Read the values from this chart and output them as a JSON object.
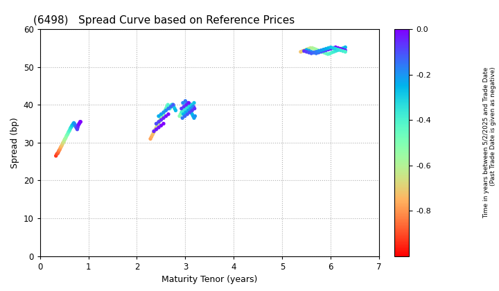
{
  "title": "(6498)   Spread Curve based on Reference Prices",
  "xlabel": "Maturity Tenor (years)",
  "ylabel": "Spread (bp)",
  "colorbar_label_line1": "Time in years between 5/2/2025 and Trade Date",
  "colorbar_label_line2": "(Past Trade Date is given as negative)",
  "xlim": [
    0,
    7
  ],
  "ylim": [
    0,
    60
  ],
  "xticks": [
    0,
    1,
    2,
    3,
    4,
    5,
    6,
    7
  ],
  "yticks": [
    0,
    10,
    20,
    30,
    40,
    50,
    60
  ],
  "cmap": "rainbow_r",
  "vmin": -1.0,
  "vmax": 0.0,
  "background_color": "#ffffff",
  "grid_color": "#b0b0b0",
  "point_size": 15,
  "cluster1_x": [
    0.33,
    0.35,
    0.37,
    0.38,
    0.39,
    0.4,
    0.41,
    0.42,
    0.43,
    0.44,
    0.45,
    0.46,
    0.47,
    0.48,
    0.49,
    0.5,
    0.51,
    0.52,
    0.53,
    0.54,
    0.55,
    0.56,
    0.57,
    0.58,
    0.59,
    0.6,
    0.61,
    0.62,
    0.63,
    0.64,
    0.65,
    0.66,
    0.67,
    0.68,
    0.69,
    0.7,
    0.71,
    0.72,
    0.73,
    0.74,
    0.75,
    0.76,
    0.77,
    0.78,
    0.79,
    0.8,
    0.81,
    0.82,
    0.83,
    0.84
  ],
  "cluster1_y": [
    26.5,
    27.0,
    27.2,
    27.5,
    27.8,
    28.0,
    28.2,
    28.5,
    28.8,
    29.0,
    29.2,
    29.5,
    29.8,
    30.0,
    30.2,
    30.5,
    30.8,
    31.0,
    31.2,
    31.5,
    31.8,
    32.0,
    32.2,
    32.5,
    32.8,
    33.0,
    33.2,
    33.5,
    33.8,
    34.0,
    34.2,
    34.5,
    34.5,
    34.8,
    35.0,
    35.2,
    35.0,
    34.8,
    34.5,
    34.2,
    34.0,
    33.8,
    33.5,
    34.0,
    34.5,
    34.8,
    35.0,
    35.2,
    35.5,
    35.5
  ],
  "cluster1_c": [
    -0.93,
    -0.91,
    -0.89,
    -0.87,
    -0.85,
    -0.83,
    -0.81,
    -0.79,
    -0.77,
    -0.75,
    -0.73,
    -0.71,
    -0.69,
    -0.67,
    -0.65,
    -0.63,
    -0.61,
    -0.59,
    -0.57,
    -0.55,
    -0.53,
    -0.51,
    -0.49,
    -0.47,
    -0.45,
    -0.43,
    -0.41,
    -0.39,
    -0.37,
    -0.35,
    -0.33,
    -0.31,
    -0.29,
    -0.27,
    -0.25,
    -0.23,
    -0.21,
    -0.19,
    -0.17,
    -0.15,
    -0.13,
    -0.11,
    -0.09,
    -0.07,
    -0.05,
    -0.03,
    -0.02,
    -0.01,
    -0.005,
    0.0
  ],
  "cluster2_x": [
    2.28,
    2.3,
    2.32,
    2.34,
    2.36,
    2.38,
    2.4,
    2.42,
    2.44,
    2.46,
    2.48,
    2.5,
    2.52,
    2.54,
    2.56,
    2.58,
    2.6,
    2.62,
    2.64,
    2.66,
    2.68,
    2.7,
    2.72,
    2.74,
    2.76,
    2.78,
    2.8,
    2.45,
    2.5,
    2.55,
    2.6,
    2.65,
    2.7,
    2.75,
    2.4,
    2.45,
    2.5,
    2.55,
    2.6,
    2.65,
    2.35,
    2.4,
    2.45,
    2.5,
    2.55
  ],
  "cluster2_y": [
    31.0,
    31.5,
    32.0,
    32.5,
    33.0,
    33.5,
    34.0,
    34.5,
    35.0,
    35.5,
    36.0,
    36.5,
    37.0,
    37.5,
    38.0,
    38.5,
    39.0,
    39.5,
    40.0,
    39.5,
    39.0,
    39.5,
    40.0,
    40.0,
    39.5,
    39.0,
    38.5,
    37.0,
    37.5,
    38.0,
    38.5,
    39.0,
    39.5,
    40.0,
    35.0,
    35.5,
    36.0,
    36.5,
    37.0,
    37.5,
    33.0,
    33.5,
    34.0,
    34.5,
    35.0
  ],
  "cluster2_c": [
    -0.78,
    -0.76,
    -0.74,
    -0.72,
    -0.7,
    -0.68,
    -0.66,
    -0.64,
    -0.62,
    -0.6,
    -0.58,
    -0.56,
    -0.54,
    -0.52,
    -0.5,
    -0.48,
    -0.46,
    -0.44,
    -0.42,
    -0.4,
    -0.38,
    -0.36,
    -0.34,
    -0.32,
    -0.3,
    -0.28,
    -0.26,
    -0.24,
    -0.22,
    -0.2,
    -0.18,
    -0.16,
    -0.14,
    -0.12,
    -0.1,
    -0.08,
    -0.06,
    -0.04,
    -0.02,
    -0.01,
    -0.05,
    -0.03,
    -0.02,
    -0.01,
    0.0
  ],
  "cluster3_x": [
    2.88,
    2.9,
    2.92,
    2.94,
    2.96,
    2.98,
    3.0,
    3.02,
    3.04,
    3.06,
    3.08,
    3.1,
    3.12,
    3.14,
    3.16,
    3.18,
    3.2,
    2.95,
    3.0,
    3.05,
    3.1,
    3.15,
    2.92,
    2.97,
    3.02,
    3.07,
    3.12,
    3.17,
    2.93,
    2.98,
    3.03,
    3.08,
    3.13,
    3.18,
    2.96,
    3.01,
    3.06,
    3.11,
    3.16,
    2.94,
    2.99,
    3.04,
    3.09,
    3.14,
    3.19
  ],
  "cluster3_y": [
    37.0,
    37.5,
    38.0,
    38.5,
    39.0,
    39.5,
    40.0,
    40.5,
    40.0,
    39.5,
    39.0,
    38.5,
    38.0,
    37.5,
    37.0,
    36.5,
    37.0,
    40.5,
    41.0,
    40.5,
    40.0,
    39.5,
    39.0,
    39.5,
    40.0,
    40.5,
    40.0,
    39.5,
    38.0,
    38.5,
    39.0,
    39.5,
    40.0,
    40.5,
    37.5,
    38.0,
    38.5,
    39.0,
    39.5,
    36.5,
    37.0,
    37.5,
    38.0,
    38.5,
    39.0
  ],
  "cluster3_c": [
    -0.52,
    -0.5,
    -0.48,
    -0.46,
    -0.44,
    -0.42,
    -0.4,
    -0.38,
    -0.36,
    -0.34,
    -0.32,
    -0.3,
    -0.28,
    -0.26,
    -0.24,
    -0.22,
    -0.2,
    -0.18,
    -0.16,
    -0.14,
    -0.12,
    -0.1,
    -0.08,
    -0.06,
    -0.04,
    -0.02,
    -0.01,
    -0.005,
    -0.38,
    -0.36,
    -0.34,
    -0.32,
    -0.3,
    -0.28,
    -0.26,
    -0.24,
    -0.22,
    -0.2,
    -0.18,
    -0.16,
    -0.14,
    -0.12,
    -0.1,
    -0.08,
    -0.06
  ],
  "cluster4_x": [
    5.38,
    5.42,
    5.46,
    5.5,
    5.54,
    5.58,
    5.62,
    5.66,
    5.7,
    5.74,
    5.78,
    5.82,
    5.86,
    5.9,
    5.94,
    5.98,
    6.02,
    6.06,
    6.1,
    6.14,
    6.18,
    6.22,
    6.26,
    6.3,
    5.5,
    5.55,
    5.6,
    5.65,
    5.7,
    5.75,
    5.8,
    5.85,
    5.9,
    5.95,
    6.0,
    6.05,
    6.1,
    6.15,
    6.2,
    6.25,
    6.3,
    5.45,
    5.5,
    5.55,
    5.6,
    5.65,
    5.7,
    5.75,
    5.8,
    5.85,
    5.9,
    5.95,
    6.0,
    6.05,
    6.1,
    6.15,
    6.2,
    6.25,
    6.3
  ],
  "cluster4_y": [
    54.0,
    54.2,
    54.4,
    54.6,
    54.8,
    55.0,
    55.0,
    54.8,
    54.6,
    54.4,
    54.2,
    54.0,
    53.8,
    53.6,
    53.4,
    53.5,
    53.8,
    54.0,
    54.2,
    54.4,
    54.6,
    54.8,
    55.0,
    55.2,
    54.5,
    54.3,
    54.0,
    53.8,
    53.6,
    53.8,
    54.0,
    54.2,
    54.4,
    54.6,
    54.8,
    55.0,
    55.2,
    55.0,
    54.8,
    54.6,
    54.4,
    54.2,
    54.0,
    53.8,
    53.6,
    53.8,
    54.0,
    54.2,
    54.4,
    54.6,
    54.8,
    55.0,
    55.2,
    55.0,
    54.8,
    54.6,
    54.4,
    54.2,
    54.0
  ],
  "cluster4_c": [
    -0.72,
    -0.7,
    -0.68,
    -0.66,
    -0.64,
    -0.62,
    -0.6,
    -0.58,
    -0.56,
    -0.54,
    -0.52,
    -0.5,
    -0.48,
    -0.46,
    -0.44,
    -0.42,
    -0.4,
    -0.38,
    -0.36,
    -0.34,
    -0.32,
    -0.3,
    -0.28,
    -0.26,
    -0.24,
    -0.22,
    -0.2,
    -0.18,
    -0.16,
    -0.14,
    -0.12,
    -0.1,
    -0.08,
    -0.06,
    -0.04,
    -0.02,
    -0.01,
    -0.005,
    0.0,
    -0.02,
    -0.04,
    -0.06,
    -0.08,
    -0.1,
    -0.12,
    -0.14,
    -0.16,
    -0.18,
    -0.2,
    -0.22,
    -0.24,
    -0.26,
    -0.28,
    -0.3,
    -0.32,
    -0.34,
    -0.36,
    -0.38,
    -0.4
  ]
}
